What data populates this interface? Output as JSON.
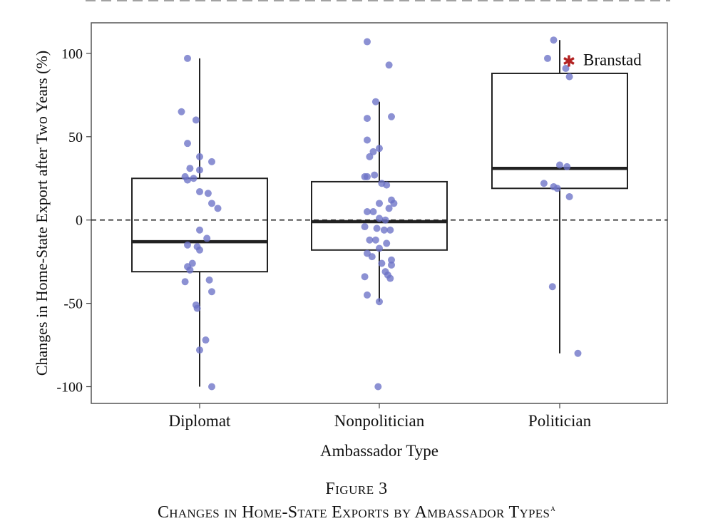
{
  "chart_data": {
    "type": "box",
    "title": "",
    "xlabel": "Ambassador Type",
    "ylabel": "Changes in Home-State Export after Two Years (%)",
    "categories": [
      "Diplomat",
      "Nonpolitician",
      "Politician"
    ],
    "ylim": [
      -110,
      118
    ],
    "y_ticks": [
      "100",
      "50",
      "0",
      "-50",
      "-100"
    ],
    "reference_line": 0,
    "point_color": "#6b72c7",
    "highlight_color": "#b22222",
    "boxes": [
      {
        "category": "Diplomat",
        "q1": -31,
        "median": -13,
        "q3": 25,
        "whisker_low": -100,
        "whisker_high": 97
      },
      {
        "category": "Nonpolitician",
        "q1": -18,
        "median": -1,
        "q3": 23,
        "whisker_low": -49,
        "whisker_high": 71
      },
      {
        "category": "Politician",
        "q1": 19,
        "median": 31,
        "q3": 88,
        "whisker_low": -80,
        "whisker_high": 108
      }
    ],
    "points": [
      {
        "category": "Diplomat",
        "jitter": [
          -0.1,
          -0.15,
          -0.03,
          -0.1,
          0.0,
          0.1,
          0.0,
          -0.08,
          -0.12,
          -0.05,
          -0.1,
          0.0,
          0.07,
          0.1,
          0.15,
          0.0,
          0.06,
          -0.02,
          -0.1,
          0.0,
          -0.06,
          -0.1,
          -0.08,
          0.08,
          -0.12,
          0.1,
          -0.03,
          -0.02,
          0.05,
          0.0,
          0.1
        ],
        "y": [
          97,
          65,
          60,
          46,
          38,
          35,
          30,
          31,
          26,
          25,
          24,
          17,
          16,
          10,
          7,
          -6,
          -11,
          -16,
          -15,
          -18,
          -26,
          -28,
          -30,
          -36,
          -37,
          -43,
          -51,
          -53,
          -72,
          -78,
          -100
        ]
      },
      {
        "category": "Nonpolitician",
        "jitter": [
          -0.1,
          0.08,
          -0.03,
          -0.1,
          0.1,
          -0.1,
          0.0,
          -0.05,
          -0.08,
          -0.04,
          -0.12,
          -0.1,
          0.02,
          0.06,
          0.1,
          0.12,
          0.0,
          0.08,
          -0.1,
          -0.05,
          0.0,
          0.05,
          -0.12,
          -0.02,
          0.04,
          0.09,
          -0.08,
          -0.03,
          0.06,
          0.0,
          -0.1,
          -0.06,
          0.02,
          0.1,
          0.1,
          0.05,
          0.07,
          -0.12,
          0.09,
          -0.1,
          0.0,
          -0.01
        ],
        "y": [
          107,
          93,
          71,
          61,
          62,
          48,
          43,
          41,
          38,
          27,
          26,
          26,
          22,
          21,
          12,
          10,
          10,
          7,
          5,
          5,
          1,
          0,
          -4,
          -5,
          -6,
          -6,
          -12,
          -12,
          -14,
          -17,
          -20,
          -22,
          -26,
          -24,
          -27,
          -31,
          -33,
          -34,
          -35,
          -45,
          -49,
          -100
        ]
      },
      {
        "category": "Politician",
        "jitter": [
          -0.05,
          -0.1,
          0.05,
          0.08,
          0.0,
          0.06,
          -0.13,
          -0.05,
          -0.02,
          0.08,
          -0.06,
          0.15
        ],
        "y": [
          108,
          97,
          91,
          86,
          33,
          32,
          22,
          20,
          19,
          14,
          -40,
          -80
        ]
      }
    ],
    "annotations": [
      {
        "category": "Politician",
        "label": "Branstad",
        "y": 96,
        "marker": "asterisk"
      }
    ]
  },
  "figure": {
    "number": "Figure 3",
    "title": "Changes in Home-State Exports by Ambassador Types",
    "footnote_marker": "a"
  }
}
